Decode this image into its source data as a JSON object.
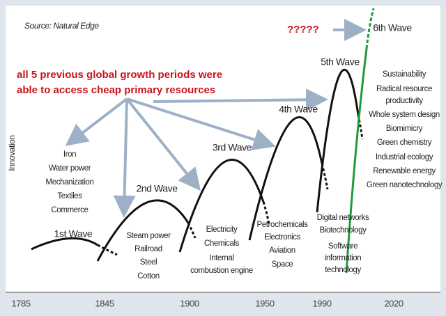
{
  "source": "Source: Natural Edge",
  "annotation": [
    "all 5 previous global growth periods were",
    "able to access cheap primary resources"
  ],
  "question": "?????",
  "y_axis_label": "Innovation",
  "waves": [
    {
      "label": "1st Wave",
      "items": [
        "Iron",
        "Water power",
        "Mechanization",
        "Textiles",
        "Commerce"
      ]
    },
    {
      "label": "2nd Wave",
      "items": [
        "Steam power",
        "Railroad",
        "Steel",
        "Cotton"
      ]
    },
    {
      "label": "3rd Wave",
      "items": [
        "Electricity",
        "Chemicals",
        "Internal",
        "combustion engine"
      ]
    },
    {
      "label": "4th Wave",
      "items": [
        "Petrochemicals",
        "Electronics",
        "Aviation",
        "Space"
      ]
    },
    {
      "label": "5th Wave",
      "items": [
        "Digital networks",
        "Biotechnology",
        "Software",
        "information",
        "technology"
      ]
    },
    {
      "label": "6th Wave",
      "items": [
        "Sustainability",
        "Radical resource",
        "productivity",
        "Whole system design",
        "Biomimicry",
        "Green chemistry",
        "Industrial ecology",
        "Renewable energy",
        "Green nanotechnology"
      ]
    }
  ],
  "x_axis": [
    "1785",
    "1845",
    "1900",
    "1950",
    "1990",
    "2020"
  ]
}
